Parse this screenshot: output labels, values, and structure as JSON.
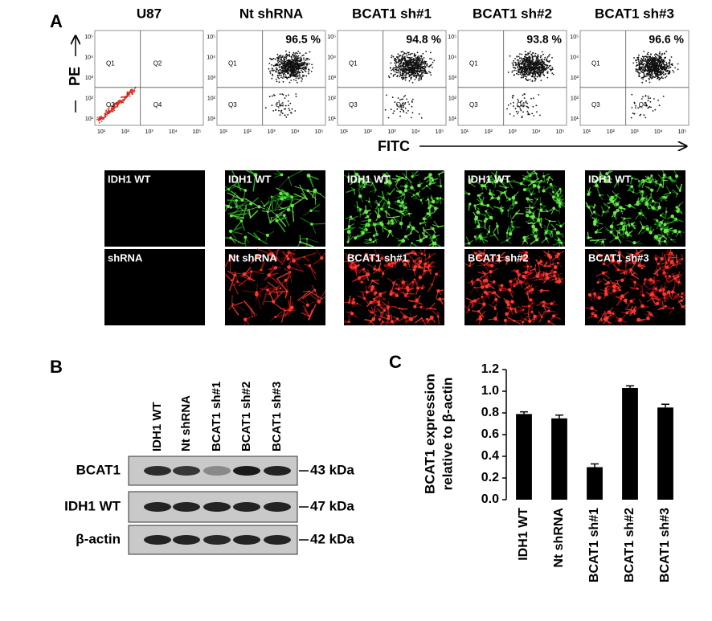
{
  "panel_a": {
    "label": "A",
    "y_axis": "PE",
    "x_axis": "FITC",
    "plots": [
      {
        "title": "U87"
      },
      {
        "title": "Nt shRNA",
        "percent": "96.5 %"
      },
      {
        "title": "BCAT1 sh#1",
        "percent": "94.8 %"
      },
      {
        "title": "BCAT1 sh#2",
        "percent": "93.8 %"
      },
      {
        "title": "BCAT1 sh#3",
        "percent": "96.6 %"
      }
    ],
    "quadrants": [
      "Q1",
      "Q2",
      "Q3",
      "Q4"
    ],
    "ticks": [
      "10¹",
      "10²",
      "10³",
      "10⁴",
      "10⁵"
    ],
    "images": [
      [
        "IDH1 WT",
        "IDH1 WT",
        "IDH1 WT",
        "IDH1 WT",
        "IDH1 WT"
      ],
      [
        "shRNA",
        "Nt shRNA",
        "BCAT1 sh#1",
        "BCAT1 sh#2",
        "BCAT1 sh#3"
      ]
    ]
  },
  "panel_b": {
    "label": "B",
    "lanes": [
      "IDH1 WT",
      "Nt shRNA",
      "BCAT1 sh#1",
      "BCAT1 sh#2",
      "BCAT1 sh#3"
    ],
    "rows": [
      {
        "protein": "BCAT1",
        "size": "43 kDa"
      },
      {
        "protein": "IDH1 WT",
        "size": "47 kDa"
      },
      {
        "protein": "β-actin",
        "size": "42 kDa"
      }
    ]
  },
  "chart_data": {
    "type": "bar",
    "label": "C",
    "ylabel": [
      "BCAT1 expression",
      "relative to β-actin"
    ],
    "categories": [
      "IDH1 WT",
      "Nt shRNA",
      "BCAT1 sh#1",
      "BCAT1 sh#2",
      "BCAT1 sh#3"
    ],
    "values": [
      0.79,
      0.75,
      0.3,
      1.03,
      0.85
    ],
    "errors": [
      0.02,
      0.03,
      0.03,
      0.02,
      0.03
    ],
    "color": "#000000",
    "ylim": [
      0,
      1.2
    ],
    "yticks": [
      {
        "value": 0,
        "label": "0.0"
      },
      0.2,
      0.4,
      0.6,
      0.8,
      {
        "value": 1,
        "label": "1.0"
      },
      1.2
    ]
  }
}
